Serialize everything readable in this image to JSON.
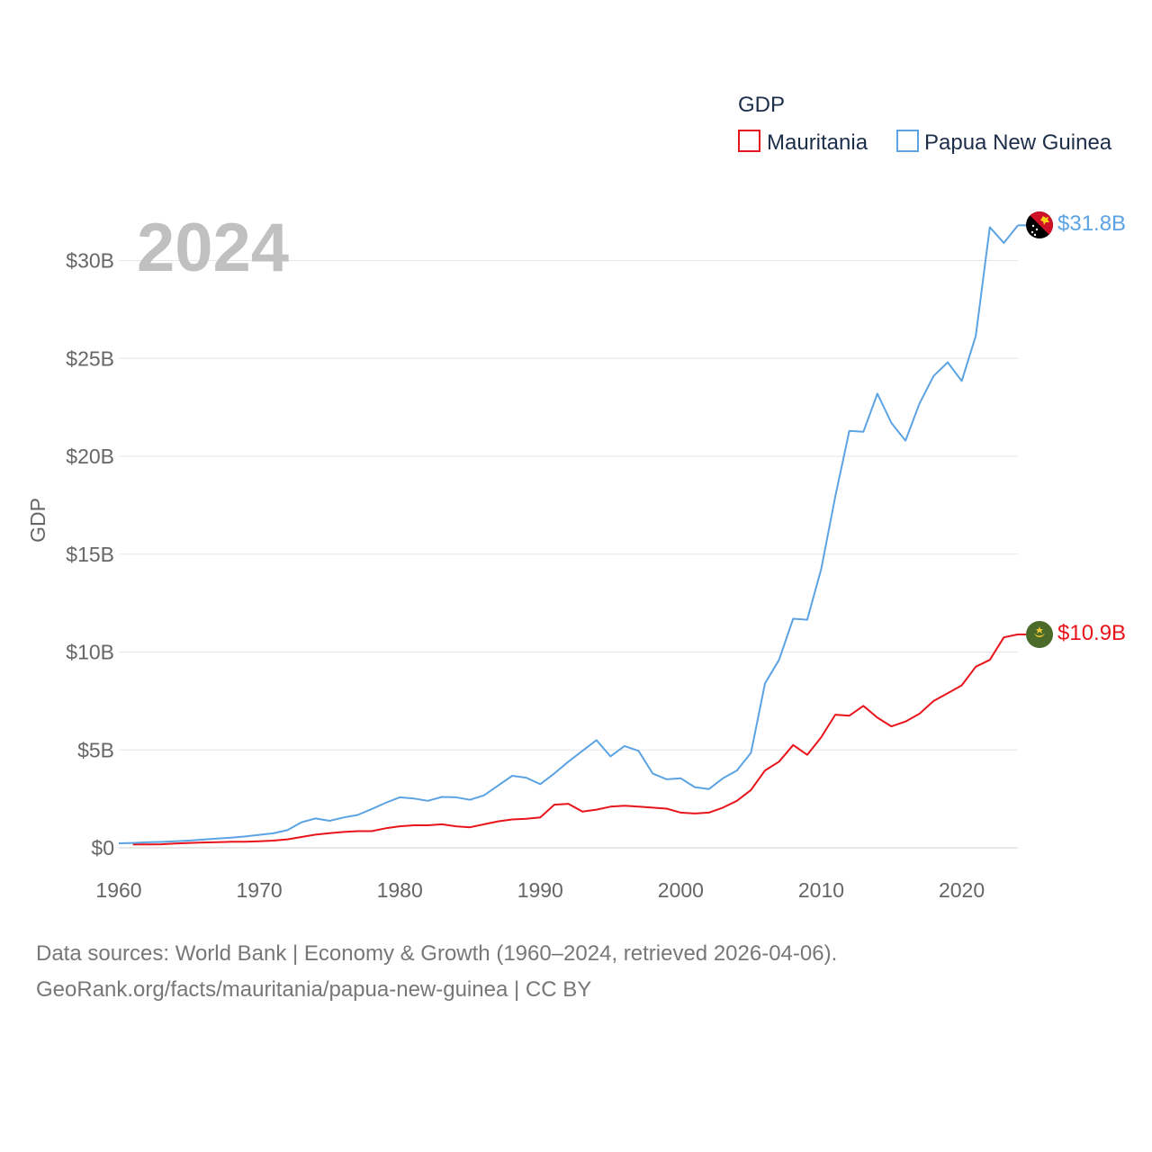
{
  "chart_data": {
    "type": "line",
    "legend_title": "GDP",
    "ylabel": "GDP",
    "xlim": [
      1960,
      2024
    ],
    "ylim": [
      0,
      32
    ],
    "y_ticks": [
      0,
      5,
      10,
      15,
      20,
      25,
      30
    ],
    "y_tick_labels": [
      "$0",
      "$5B",
      "$10B",
      "$15B",
      "$20B",
      "$25B",
      "$30B"
    ],
    "x_ticks": [
      1960,
      1970,
      1980,
      1990,
      2000,
      2010,
      2020
    ],
    "x_tick_labels": [
      "1960",
      "1970",
      "1980",
      "1990",
      "2000",
      "2010",
      "2020"
    ],
    "year_label": "2024",
    "grid": true,
    "series": [
      {
        "name": "Mauritania",
        "color": "#e8141b",
        "end_label": "$10.9B",
        "flag": "mauritania-flag-icon",
        "x": [
          1961,
          1962,
          1963,
          1964,
          1965,
          1966,
          1967,
          1968,
          1969,
          1970,
          1971,
          1972,
          1973,
          1974,
          1975,
          1976,
          1977,
          1978,
          1979,
          1980,
          1981,
          1982,
          1983,
          1984,
          1985,
          1986,
          1987,
          1988,
          1989,
          1990,
          1991,
          1992,
          1993,
          1994,
          1995,
          1996,
          1997,
          1998,
          1999,
          2000,
          2001,
          2002,
          2003,
          2004,
          2005,
          2006,
          2007,
          2008,
          2009,
          2010,
          2011,
          2012,
          2013,
          2014,
          2015,
          2016,
          2017,
          2018,
          2019,
          2020,
          2021,
          2022,
          2023,
          2024
        ],
        "values": [
          0.17,
          0.17,
          0.18,
          0.22,
          0.25,
          0.27,
          0.29,
          0.31,
          0.31,
          0.33,
          0.37,
          0.43,
          0.55,
          0.67,
          0.75,
          0.81,
          0.85,
          0.85,
          1.0,
          1.1,
          1.15,
          1.15,
          1.2,
          1.1,
          1.05,
          1.2,
          1.35,
          1.45,
          1.48,
          1.55,
          2.2,
          2.25,
          1.85,
          1.95,
          2.1,
          2.15,
          2.1,
          2.05,
          2.0,
          1.8,
          1.75,
          1.8,
          2.05,
          2.4,
          2.95,
          3.95,
          4.4,
          5.25,
          4.75,
          5.65,
          6.8,
          6.75,
          7.25,
          6.65,
          6.2,
          6.45,
          6.85,
          7.5,
          7.9,
          8.3,
          9.25,
          9.6,
          10.75,
          10.9
        ]
      },
      {
        "name": "Papua New Guinea",
        "color": "#5ba3e3",
        "end_label": "$31.8B",
        "flag": "papua-new-guinea-flag-icon",
        "x": [
          1960,
          1961,
          1962,
          1963,
          1964,
          1965,
          1966,
          1967,
          1968,
          1969,
          1970,
          1971,
          1972,
          1973,
          1974,
          1975,
          1976,
          1977,
          1978,
          1979,
          1980,
          1981,
          1982,
          1983,
          1984,
          1985,
          1986,
          1987,
          1988,
          1989,
          1990,
          1991,
          1992,
          1993,
          1994,
          1995,
          1996,
          1997,
          1998,
          1999,
          2000,
          2001,
          2002,
          2003,
          2004,
          2005,
          2006,
          2007,
          2008,
          2009,
          2010,
          2011,
          2012,
          2013,
          2014,
          2015,
          2016,
          2017,
          2018,
          2019,
          2020,
          2021,
          2022,
          2023,
          2024
        ],
        "values": [
          0.23,
          0.25,
          0.28,
          0.3,
          0.33,
          0.37,
          0.42,
          0.47,
          0.52,
          0.58,
          0.66,
          0.74,
          0.9,
          1.3,
          1.5,
          1.38,
          1.55,
          1.68,
          1.98,
          2.3,
          2.58,
          2.52,
          2.4,
          2.6,
          2.58,
          2.45,
          2.68,
          3.18,
          3.68,
          3.58,
          3.25,
          3.8,
          4.4,
          4.95,
          5.5,
          4.67,
          5.2,
          4.95,
          3.8,
          3.5,
          3.55,
          3.1,
          3.0,
          3.55,
          3.95,
          4.85,
          8.4,
          9.6,
          11.7,
          11.65,
          14.25,
          17.95,
          21.3,
          21.25,
          23.2,
          21.7,
          20.8,
          22.7,
          24.1,
          24.8,
          23.85,
          26.15,
          31.7,
          30.9,
          31.8
        ]
      }
    ]
  },
  "source": {
    "line1": "Data sources: World Bank | Economy & Growth (1960–2024, retrieved 2026-04-06).",
    "line2": "GeoRank.org/facts/mauritania/papua-new-guinea | CC BY"
  }
}
